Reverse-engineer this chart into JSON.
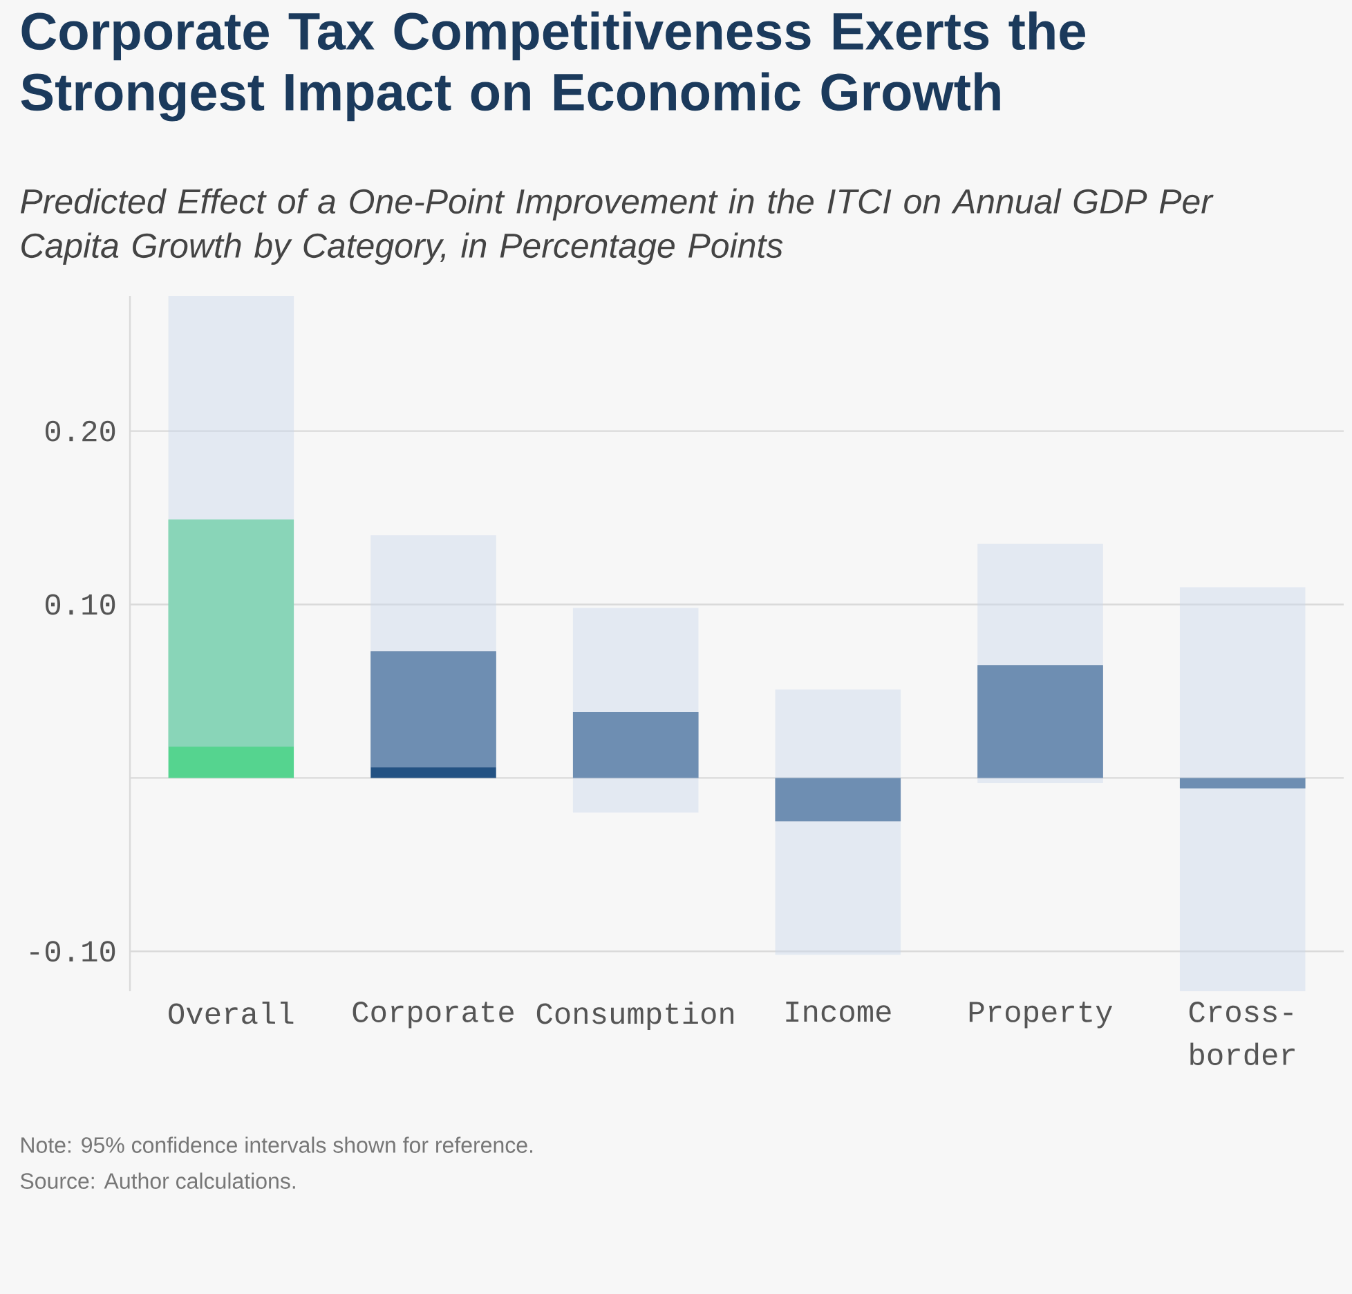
{
  "chart_data": {
    "type": "bar",
    "title": "Corporate Tax Competitiveness Exerts the Strongest Impact on Economic Growth",
    "subtitle": "Predicted Effect of a One-Point Improvement in the ITCI on Annual GDP Per Capita Growth by Category, in Percentage Points",
    "categories": [
      "Overall",
      "Corporate",
      "Consumption",
      "Income",
      "Property",
      "Cross-border"
    ],
    "values": [
      0.149,
      0.073,
      0.038,
      -0.025,
      0.065,
      -0.006
    ],
    "colors": [
      "#55d48f",
      "#235283",
      "#235283",
      "#235283",
      "#235283",
      "#235283"
    ],
    "errors": [
      [
        0.018,
        0.278
      ],
      [
        0.006,
        0.14
      ],
      [
        -0.02,
        0.098
      ],
      [
        -0.102,
        0.051
      ],
      [
        -0.003,
        0.135
      ],
      [
        -0.123,
        0.11
      ]
    ],
    "ylim": [
      -0.123,
      0.278
    ],
    "yticks": [
      {
        "value": -0.1,
        "label": "-0.10"
      },
      {
        "value": 0,
        "label": null
      },
      {
        "value": 0.1,
        "label": "0.10"
      },
      {
        "value": 0.2,
        "label": "0.20"
      }
    ],
    "grid": "y",
    "annotations": [
      "Note: 95% confidence intervals shown for reference.",
      "Source: Author calculations."
    ]
  }
}
